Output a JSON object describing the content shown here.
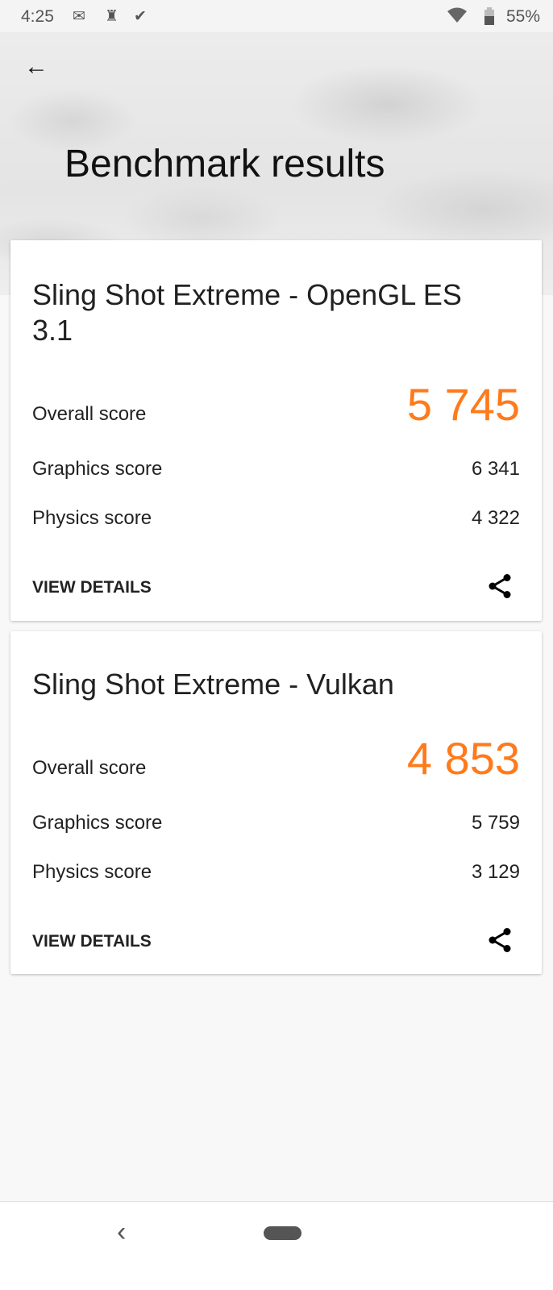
{
  "status_bar": {
    "time": "4:25",
    "battery": "55%",
    "icons": [
      "gmail-icon",
      "keyhole-icon",
      "tasks-icon",
      "wifi-icon",
      "battery-charging-icon"
    ]
  },
  "header": {
    "title": "Benchmark results"
  },
  "accent_color": "#ff7a1a",
  "results": [
    {
      "title": "Sling Shot Extreme - OpenGL ES 3.1",
      "overall_label": "Overall score",
      "overall": "5 745",
      "graphics_label": "Graphics score",
      "graphics": "6 341",
      "physics_label": "Physics score",
      "physics": "4 322",
      "details_label": "VIEW DETAILS"
    },
    {
      "title": "Sling Shot Extreme - Vulkan",
      "overall_label": "Overall score",
      "overall": "4 853",
      "graphics_label": "Graphics score",
      "graphics": "5 759",
      "physics_label": "Physics score",
      "physics": "3 129",
      "details_label": "VIEW DETAILS"
    }
  ]
}
